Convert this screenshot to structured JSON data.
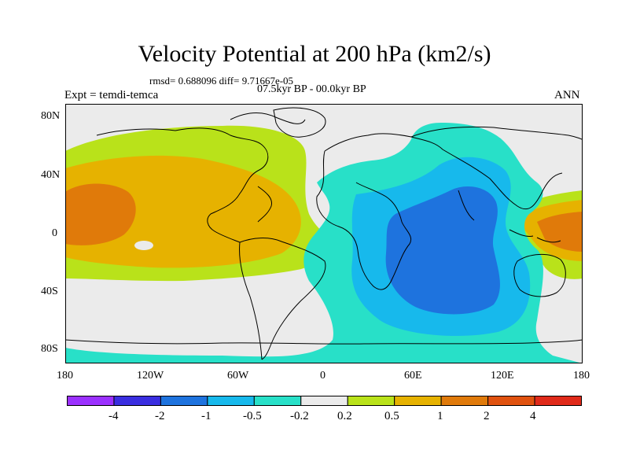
{
  "title": "Velocity Potential at 200 hPa (km2/s)",
  "stats": "rmsd= 0.688096 diff= 9.71667e-05",
  "period": "07.5kyr BP - 00.0kyr BP",
  "experiment": "Expt = temdi-temca",
  "season": "ANN",
  "map": {
    "projection": "cylindrical equidistant",
    "lon_range": [
      -180,
      180
    ],
    "lat_range": [
      -90,
      90
    ],
    "lat_labels": [
      "80N",
      "40N",
      "0",
      "40S",
      "80S"
    ],
    "lon_labels": [
      "180",
      "120W",
      "60W",
      "0",
      "60E",
      "120E",
      "180"
    ],
    "background_color": "#ebebeb"
  },
  "colorbar": {
    "colors": [
      "#9b30ff",
      "#3a2ee0",
      "#1e73de",
      "#17b9ec",
      "#28e0c8",
      "#ebebeb",
      "#b9e21a",
      "#e6b200",
      "#e07a0a",
      "#e0520f",
      "#e02a1a"
    ],
    "labels": [
      "-4",
      "-2",
      "-1",
      "-0.5",
      "-0.2",
      "0.2",
      "0.5",
      "1",
      "2",
      "4"
    ]
  }
}
